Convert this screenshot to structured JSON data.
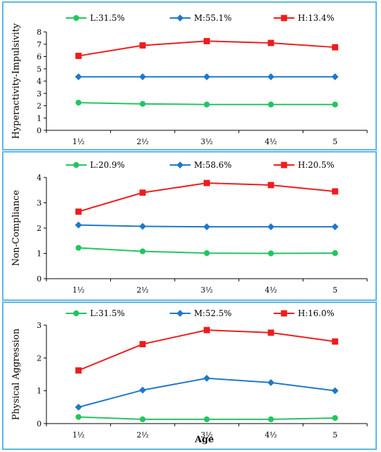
{
  "colors": {
    "L": "#22c55e",
    "M": "#1f78c8",
    "H": "#ee1c1c",
    "border": "#5bb8e6"
  },
  "x_axis_label": "Age",
  "chart_data": [
    {
      "type": "line",
      "ylabel": "Hyperactivity-Impulsivity",
      "categories": [
        "1½",
        "2½",
        "3½",
        "4½",
        "5"
      ],
      "ylim": [
        0,
        8
      ],
      "yticks": [
        "0",
        "1",
        "2",
        "3",
        "4",
        "5",
        "6",
        "7",
        "8"
      ],
      "series": [
        {
          "name": "L:31.5%",
          "key": "L",
          "marker": "circle",
          "values": [
            2.25,
            2.15,
            2.1,
            2.1,
            2.1
          ]
        },
        {
          "name": "M:55.1%",
          "key": "M",
          "marker": "diamond",
          "values": [
            4.35,
            4.35,
            4.35,
            4.35,
            4.35
          ]
        },
        {
          "name": "H:13.4%",
          "key": "H",
          "marker": "square",
          "values": [
            6.05,
            6.9,
            7.25,
            7.1,
            6.75
          ]
        }
      ]
    },
    {
      "type": "line",
      "ylabel": "Non-Compliance",
      "categories": [
        "1½",
        "2½",
        "3½",
        "4½",
        "5"
      ],
      "ylim": [
        0,
        4
      ],
      "yticks": [
        "0",
        "1",
        "2",
        "3",
        "4"
      ],
      "series": [
        {
          "name": "L:20.9%",
          "key": "L",
          "marker": "circle",
          "values": [
            1.22,
            1.08,
            1.01,
            1.0,
            1.01
          ]
        },
        {
          "name": "M:58.6%",
          "key": "M",
          "marker": "diamond",
          "values": [
            2.12,
            2.07,
            2.05,
            2.05,
            2.05
          ]
        },
        {
          "name": "H:20.5%",
          "key": "H",
          "marker": "square",
          "values": [
            2.65,
            3.4,
            3.78,
            3.7,
            3.45
          ]
        }
      ]
    },
    {
      "type": "line",
      "ylabel": "Physical Aggression",
      "categories": [
        "1½",
        "2½",
        "3½",
        "4½",
        "5"
      ],
      "ylim": [
        0,
        3
      ],
      "yticks": [
        "0",
        "1",
        "2",
        "3"
      ],
      "series": [
        {
          "name": "L:31.5%",
          "key": "L",
          "marker": "circle",
          "values": [
            0.2,
            0.13,
            0.13,
            0.13,
            0.17
          ]
        },
        {
          "name": "M:52.5%",
          "key": "M",
          "marker": "diamond",
          "values": [
            0.5,
            1.02,
            1.38,
            1.25,
            1.0
          ]
        },
        {
          "name": "H:16.0%",
          "key": "H",
          "marker": "square",
          "values": [
            1.62,
            2.42,
            2.85,
            2.77,
            2.5
          ]
        }
      ]
    }
  ]
}
